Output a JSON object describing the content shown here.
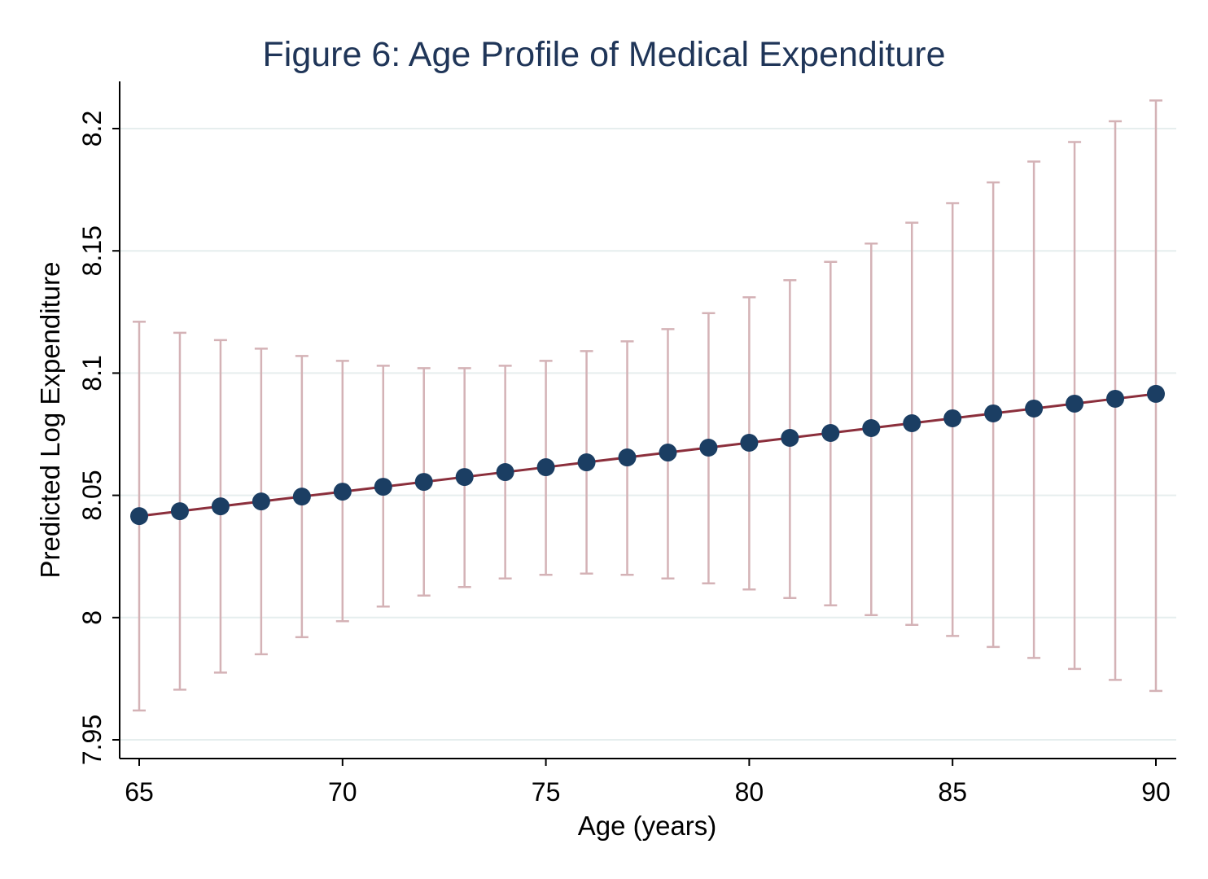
{
  "chart_data": {
    "type": "scatter",
    "title": "Figure 6: Age Profile of Medical Expenditure",
    "xlabel": "Age (years)",
    "ylabel": "Predicted Log Expenditure",
    "xlim": [
      64.5,
      90.5
    ],
    "ylim": [
      7.943,
      8.22
    ],
    "xticks": [
      65,
      70,
      75,
      80,
      85,
      90
    ],
    "yticks": [
      7.95,
      8,
      8.05,
      8.1,
      8.15,
      8.2
    ],
    "xtick_labels": [
      "65",
      "70",
      "75",
      "80",
      "85",
      "90"
    ],
    "ytick_labels": [
      "7.95",
      "8",
      "8.05",
      "8.1",
      "8.15",
      "8.2"
    ],
    "grid": "horizontal",
    "x": [
      65,
      66,
      67,
      68,
      69,
      70,
      71,
      72,
      73,
      74,
      75,
      76,
      77,
      78,
      79,
      80,
      81,
      82,
      83,
      84,
      85,
      86,
      87,
      88,
      89,
      90
    ],
    "series": [
      {
        "values": [
          8.0415,
          8.0435,
          8.0455,
          8.0475,
          8.0495,
          8.0515,
          8.0535,
          8.0555,
          8.0575,
          8.0595,
          8.0615,
          8.0635,
          8.0655,
          8.0675,
          8.0695,
          8.0715,
          8.0735,
          8.0755,
          8.0775,
          8.0795,
          8.0815,
          8.0835,
          8.0855,
          8.0875,
          8.0895,
          8.0915
        ],
        "ci_lower": [
          7.962,
          7.9705,
          7.9775,
          7.985,
          7.992,
          7.9985,
          8.0045,
          8.009,
          8.0125,
          8.016,
          8.0175,
          8.018,
          8.0175,
          8.016,
          8.014,
          8.0115,
          8.008,
          8.005,
          8.001,
          7.997,
          7.9925,
          7.988,
          7.9835,
          7.979,
          7.9745,
          7.97
        ],
        "ci_upper": [
          8.121,
          8.1165,
          8.1135,
          8.11,
          8.107,
          8.105,
          8.103,
          8.102,
          8.102,
          8.103,
          8.105,
          8.109,
          8.113,
          8.118,
          8.1245,
          8.131,
          8.138,
          8.1455,
          8.153,
          8.1615,
          8.1695,
          8.178,
          8.1865,
          8.1945,
          8.203,
          8.2115
        ],
        "colors": {
          "marker": "#1b3e63",
          "line": "#8b2f3c",
          "ci": "#d4b2b6"
        }
      }
    ]
  }
}
